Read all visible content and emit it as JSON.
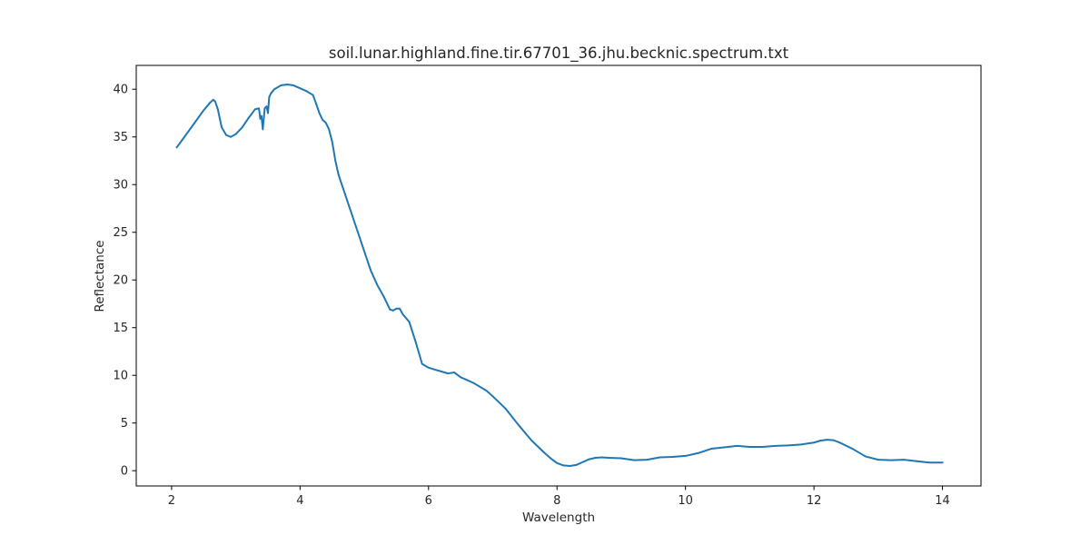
{
  "chart_data": {
    "type": "line",
    "title": "soil.lunar.highland.fine.tir.67701_36.jhu.becknic.spectrum.txt",
    "xlabel": "Wavelength",
    "ylabel": "Reflectance",
    "xlim": [
      1.45,
      14.6
    ],
    "ylim": [
      -1.6,
      42.5
    ],
    "xticks": [
      2,
      4,
      6,
      8,
      10,
      12,
      14
    ],
    "yticks": [
      0,
      5,
      10,
      15,
      20,
      25,
      30,
      35,
      40
    ],
    "grid": false,
    "line_color": "#1f77b4",
    "series": [
      {
        "x": [
          2.08,
          2.2,
          2.35,
          2.5,
          2.6,
          2.65,
          2.68,
          2.72,
          2.78,
          2.85,
          2.92,
          3.0,
          3.1,
          3.2,
          3.3,
          3.36,
          3.38,
          3.4,
          3.42,
          3.45,
          3.48,
          3.5,
          3.52,
          3.55,
          3.6,
          3.7,
          3.8,
          3.9,
          4.0,
          4.1,
          4.2,
          4.25,
          4.3,
          4.35,
          4.4,
          4.45,
          4.5,
          4.55,
          4.6,
          4.7,
          4.8,
          4.9,
          5.0,
          5.1,
          5.2,
          5.3,
          5.4,
          5.45,
          5.5,
          5.55,
          5.6,
          5.7,
          5.8,
          5.9,
          6.0,
          6.1,
          6.2,
          6.3,
          6.4,
          6.5,
          6.6,
          6.7,
          6.8,
          6.9,
          7.0,
          7.2,
          7.4,
          7.6,
          7.8,
          7.9,
          8.0,
          8.1,
          8.2,
          8.3,
          8.4,
          8.5,
          8.6,
          8.7,
          8.8,
          9.0,
          9.2,
          9.4,
          9.6,
          9.8,
          10.0,
          10.2,
          10.4,
          10.6,
          10.8,
          11.0,
          11.2,
          11.4,
          11.6,
          11.8,
          12.0,
          12.1,
          12.2,
          12.3,
          12.4,
          12.6,
          12.8,
          13.0,
          13.2,
          13.4,
          13.6,
          13.8,
          14.0
        ],
        "y": [
          33.9,
          35.0,
          36.4,
          37.8,
          38.6,
          38.9,
          38.7,
          37.9,
          36.0,
          35.2,
          35.0,
          35.3,
          36.0,
          37.0,
          37.9,
          38.0,
          36.9,
          37.2,
          35.8,
          38.0,
          38.2,
          37.5,
          39.2,
          39.6,
          40.0,
          40.4,
          40.5,
          40.4,
          40.1,
          39.8,
          39.4,
          38.5,
          37.5,
          36.8,
          36.5,
          35.8,
          34.5,
          32.5,
          31.0,
          29.0,
          27.0,
          25.0,
          23.0,
          21.0,
          19.5,
          18.3,
          16.9,
          16.8,
          17.0,
          17.0,
          16.4,
          15.6,
          13.5,
          11.2,
          10.8,
          10.6,
          10.4,
          10.2,
          10.3,
          9.8,
          9.5,
          9.2,
          8.8,
          8.4,
          7.8,
          6.5,
          4.8,
          3.2,
          1.9,
          1.3,
          0.8,
          0.55,
          0.5,
          0.6,
          0.9,
          1.2,
          1.35,
          1.4,
          1.35,
          1.3,
          1.1,
          1.15,
          1.4,
          1.45,
          1.55,
          1.85,
          2.3,
          2.45,
          2.6,
          2.5,
          2.5,
          2.6,
          2.65,
          2.75,
          2.95,
          3.15,
          3.25,
          3.2,
          2.95,
          2.3,
          1.5,
          1.15,
          1.1,
          1.15,
          1.0,
          0.85,
          0.85
        ]
      }
    ]
  }
}
